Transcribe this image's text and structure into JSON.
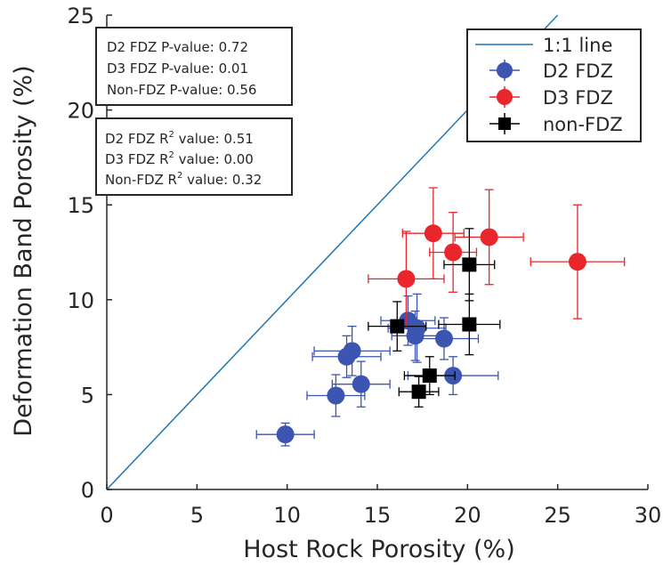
{
  "chart_data": {
    "type": "scatter",
    "xlabel": "Host Rock Porosity (%)",
    "ylabel": "Deformation Band Porosity (%)",
    "xlim": [
      0,
      30
    ],
    "ylim": [
      0,
      25
    ],
    "xticks": [
      0,
      5,
      10,
      15,
      20,
      25,
      30
    ],
    "yticks": [
      0,
      5,
      10,
      15,
      20,
      25
    ],
    "grid": false,
    "legend_position": "top-right",
    "reference_line": {
      "name": "1:1 line",
      "x": [
        0,
        25
      ],
      "y": [
        0,
        25
      ],
      "color": "#1f77b4"
    },
    "series": [
      {
        "name": "D2 FDZ",
        "marker": "circle",
        "color": "#3b55b0",
        "points": [
          {
            "x": 9.9,
            "y": 2.9,
            "xerr": 1.6,
            "yerr": 0.6
          },
          {
            "x": 12.7,
            "y": 4.95,
            "xerr": 1.6,
            "yerr": 1.1
          },
          {
            "x": 14.1,
            "y": 5.55,
            "xerr": 1.6,
            "yerr": 1.2
          },
          {
            "x": 13.3,
            "y": 7.0,
            "xerr": 1.9,
            "yerr": 1.1
          },
          {
            "x": 13.6,
            "y": 7.3,
            "xerr": 2.1,
            "yerr": 1.3
          },
          {
            "x": 16.7,
            "y": 8.9,
            "xerr": 1.5,
            "yerr": 1.3
          },
          {
            "x": 17.2,
            "y": 8.5,
            "xerr": 1.6,
            "yerr": 1.8
          },
          {
            "x": 17.1,
            "y": 8.1,
            "xerr": 1.3,
            "yerr": 1.3
          },
          {
            "x": 18.7,
            "y": 7.95,
            "xerr": 1.9,
            "yerr": 1.1
          },
          {
            "x": 19.2,
            "y": 6.0,
            "xerr": 2.5,
            "yerr": 1.0
          }
        ]
      },
      {
        "name": "D3 FDZ",
        "marker": "circle",
        "color": "#e8262b",
        "points": [
          {
            "x": 16.6,
            "y": 11.1,
            "xerr": 2.1,
            "yerr": 2.5
          },
          {
            "x": 18.1,
            "y": 13.5,
            "xerr": 1.7,
            "yerr": 2.4
          },
          {
            "x": 19.2,
            "y": 12.5,
            "xerr": 1.3,
            "yerr": 2.1
          },
          {
            "x": 21.2,
            "y": 13.3,
            "xerr": 1.9,
            "yerr": 2.5
          },
          {
            "x": 26.1,
            "y": 12.0,
            "xerr": 2.6,
            "yerr": 3.0
          }
        ]
      },
      {
        "name": "non-FDZ",
        "marker": "square",
        "color": "#000000",
        "points": [
          {
            "x": 16.1,
            "y": 8.6,
            "xerr": 1.6,
            "yerr": 1.3
          },
          {
            "x": 17.3,
            "y": 5.15,
            "xerr": 1.1,
            "yerr": 0.8
          },
          {
            "x": 17.9,
            "y": 6.0,
            "xerr": 1.4,
            "yerr": 1.0
          },
          {
            "x": 20.1,
            "y": 11.85,
            "xerr": 1.4,
            "yerr": 1.9
          },
          {
            "x": 20.1,
            "y": 8.7,
            "xerr": 1.7,
            "yerr": 1.6
          }
        ]
      }
    ],
    "annotations": {
      "pvalues": [
        "D2 FDZ P-value: 0.72",
        "D3 FDZ P-value: 0.01",
        "Non-FDZ P-value: 0.56"
      ],
      "r2": [
        {
          "prefix": "D2 FDZ R",
          "sup": "2",
          "suffix": " value: 0.51"
        },
        {
          "prefix": "D3 FDZ R",
          "sup": "2",
          "suffix": " value: 0.00"
        },
        {
          "prefix": "Non-FDZ R",
          "sup": "2",
          "suffix": " value: 0.32"
        }
      ]
    }
  }
}
